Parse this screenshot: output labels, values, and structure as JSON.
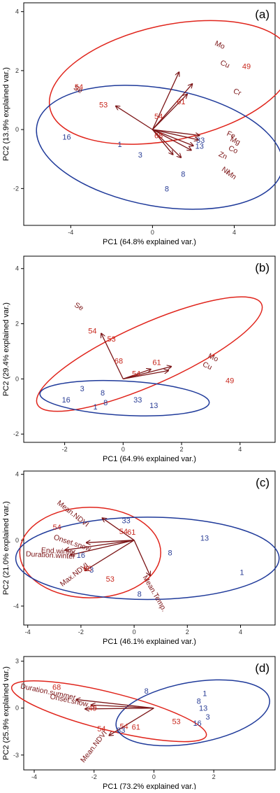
{
  "colors": {
    "group_red": "#e0241b",
    "group_blue": "#1f3a9a",
    "arrow": "#7b1416",
    "label_red": "#c8281e",
    "label_blue": "#2a3e96",
    "frame": "#000000"
  },
  "chart_data": [
    {
      "type": "scatter",
      "panel_label": "(a)",
      "xlabel": "PC1 (64.8% explained var.)",
      "ylabel": "PC2 (13.9% explained var.)",
      "xlim": [
        -6.3,
        6.0
      ],
      "ylim": [
        -3.25,
        4.3
      ],
      "xticks": [
        -4,
        0,
        4
      ],
      "yticks": [
        -2,
        0,
        2,
        4
      ],
      "ellipses": [
        {
          "group": "red",
          "cx": 0.9,
          "cy": 1.6,
          "rx": 6.05,
          "ry": 1.95,
          "angle": 12
        },
        {
          "group": "blue",
          "cx": 0.35,
          "cy": -0.6,
          "rx": 6.1,
          "ry": 2.0,
          "angle": -10
        }
      ],
      "points": [
        {
          "label": "54",
          "x": -3.6,
          "y": 1.45,
          "group": "red"
        },
        {
          "label": "53",
          "x": -2.4,
          "y": 0.85,
          "group": "red"
        },
        {
          "label": "54",
          "x": 0.3,
          "y": 0.45,
          "group": "red"
        },
        {
          "label": "61",
          "x": 1.4,
          "y": 0.95,
          "group": "red"
        },
        {
          "label": "68",
          "x": 0.3,
          "y": -0.2,
          "group": "red"
        },
        {
          "label": "49",
          "x": 4.6,
          "y": 2.15,
          "group": "red"
        },
        {
          "label": "16",
          "x": -4.2,
          "y": -0.25,
          "group": "blue"
        },
        {
          "label": "1",
          "x": -1.6,
          "y": -0.5,
          "group": "blue"
        },
        {
          "label": "3",
          "x": -0.6,
          "y": -0.85,
          "group": "blue"
        },
        {
          "label": "33",
          "x": 2.35,
          "y": -0.35,
          "group": "blue"
        },
        {
          "label": "13",
          "x": 2.3,
          "y": -0.55,
          "group": "blue"
        },
        {
          "label": "8",
          "x": 1.5,
          "y": -1.5,
          "group": "blue"
        },
        {
          "label": "8",
          "x": 0.7,
          "y": -2.0,
          "group": "blue"
        }
      ],
      "loadings": [
        {
          "label": "Se",
          "x": -1.8,
          "y": 0.8,
          "lx": -3.7,
          "ly": 1.3,
          "rotate": 30
        },
        {
          "label": "Mo",
          "x": 1.3,
          "y": 1.95,
          "lx": 3.25,
          "ly": 2.8,
          "rotate": 25
        },
        {
          "label": "Cu",
          "x": 1.95,
          "y": 1.55,
          "lx": 3.5,
          "ly": 2.15,
          "rotate": 25
        },
        {
          "label": "Cr",
          "x": 1.7,
          "y": 1.2,
          "lx": 4.1,
          "ly": 1.2,
          "rotate": 25
        },
        {
          "label": "Fe",
          "x": 2.3,
          "y": -0.2,
          "lx": 3.8,
          "ly": -0.25,
          "rotate": 25
        },
        {
          "label": "Mg",
          "x": 2.25,
          "y": -0.35,
          "lx": 4.0,
          "ly": -0.45,
          "rotate": 25
        },
        {
          "label": "Co",
          "x": 2.0,
          "y": -0.55,
          "lx": 3.9,
          "ly": -0.75,
          "rotate": 25
        },
        {
          "label": "Zn",
          "x": 1.9,
          "y": -0.7,
          "lx": 3.4,
          "ly": -0.95,
          "rotate": 25
        },
        {
          "label": "Ni",
          "x": 1.4,
          "y": -0.95,
          "lx": 3.5,
          "ly": -1.45,
          "rotate": 35
        },
        {
          "label": "Mn",
          "x": 1.0,
          "y": -0.85,
          "lx": 3.8,
          "ly": -1.6,
          "rotate": 35
        }
      ]
    },
    {
      "type": "scatter",
      "panel_label": "(b)",
      "xlabel": "PC1 (64.9% explained var.)",
      "ylabel": "PC2 (29.4% explained var.)",
      "xlim": [
        -3.4,
        5.2
      ],
      "ylim": [
        -2.3,
        4.45
      ],
      "xticks": [
        -2,
        0,
        2,
        4
      ],
      "yticks": [
        -2,
        0,
        2,
        4
      ],
      "ellipses": [
        {
          "group": "red",
          "cx": 0.9,
          "cy": 0.9,
          "rx": 4.2,
          "ry": 1.1,
          "angle": 24
        },
        {
          "group": "blue",
          "cx": 0.05,
          "cy": -0.7,
          "rx": 2.9,
          "ry": 0.62,
          "angle": -3
        }
      ],
      "points": [
        {
          "label": "54",
          "x": -1.05,
          "y": 1.75,
          "group": "red"
        },
        {
          "label": "53",
          "x": -0.4,
          "y": 1.45,
          "group": "red"
        },
        {
          "label": "68",
          "x": -0.15,
          "y": 0.65,
          "group": "red"
        },
        {
          "label": "54",
          "x": 0.45,
          "y": 0.2,
          "group": "red"
        },
        {
          "label": "61",
          "x": 1.15,
          "y": 0.6,
          "group": "red"
        },
        {
          "label": "49",
          "x": 3.65,
          "y": -0.05,
          "group": "red"
        },
        {
          "label": "3",
          "x": -1.4,
          "y": -0.35,
          "group": "blue"
        },
        {
          "label": "8",
          "x": -0.7,
          "y": -0.5,
          "group": "blue"
        },
        {
          "label": "16",
          "x": -1.95,
          "y": -0.75,
          "group": "blue"
        },
        {
          "label": "8",
          "x": -0.6,
          "y": -0.85,
          "group": "blue"
        },
        {
          "label": "1",
          "x": -0.95,
          "y": -1.0,
          "group": "blue"
        },
        {
          "label": "33",
          "x": 0.5,
          "y": -0.75,
          "group": "blue"
        },
        {
          "label": "13",
          "x": 1.05,
          "y": -0.95,
          "group": "blue"
        }
      ],
      "loadings": [
        {
          "label": "Se",
          "x": -0.75,
          "y": 1.65,
          "lx": -1.55,
          "ly": 2.55,
          "rotate": 30
        },
        {
          "label": "Mo",
          "x": 1.65,
          "y": 0.45,
          "lx": 3.05,
          "ly": 0.7,
          "rotate": 25
        },
        {
          "label": "Cu",
          "x": 1.55,
          "y": 0.3,
          "lx": 2.85,
          "ly": 0.4,
          "rotate": 25
        },
        {
          "label": "",
          "x": 0.95,
          "y": 0.35,
          "lx": 0,
          "ly": 0,
          "rotate": 0
        }
      ]
    },
    {
      "type": "scatter",
      "panel_label": "(c)",
      "xlabel": "PC1 (46.1% explained var.)",
      "ylabel": "PC2 (21.0% explained var.)",
      "xlim": [
        -4.15,
        5.3
      ],
      "ylim": [
        -5.15,
        4.2
      ],
      "xticks": [
        -4,
        -2,
        0,
        2,
        4
      ],
      "yticks": [
        -4,
        0,
        4
      ],
      "ellipses": [
        {
          "group": "red",
          "cx": -1.65,
          "cy": -0.75,
          "rx": 2.65,
          "ry": 2.75,
          "angle": 0
        },
        {
          "group": "blue",
          "cx": 0.5,
          "cy": -1.1,
          "rx": 4.95,
          "ry": 2.5,
          "angle": 0
        }
      ],
      "points": [
        {
          "label": "54",
          "x": -2.9,
          "y": 0.8,
          "group": "red"
        },
        {
          "label": "54",
          "x": -0.4,
          "y": 0.55,
          "group": "red"
        },
        {
          "label": "61",
          "x": -0.1,
          "y": 0.5,
          "group": "red"
        },
        {
          "label": "68",
          "x": -1.75,
          "y": -1.7,
          "group": "red"
        },
        {
          "label": "53",
          "x": -0.9,
          "y": -2.35,
          "group": "red"
        },
        {
          "label": "33",
          "x": -0.3,
          "y": 1.2,
          "group": "blue"
        },
        {
          "label": "16",
          "x": -2.0,
          "y": -0.9,
          "group": "blue"
        },
        {
          "label": "3",
          "x": -1.6,
          "y": -1.8,
          "group": "blue"
        },
        {
          "label": "8",
          "x": 1.35,
          "y": -0.75,
          "group": "blue"
        },
        {
          "label": "8",
          "x": 0.2,
          "y": -3.25,
          "group": "blue"
        },
        {
          "label": "13",
          "x": 2.65,
          "y": 0.15,
          "group": "blue"
        },
        {
          "label": "1",
          "x": 4.05,
          "y": -1.95,
          "group": "blue"
        }
      ],
      "loadings": [
        {
          "label": "Mean.NDVI",
          "x": -1.2,
          "y": 1.35,
          "lx": -2.35,
          "ly": 1.5,
          "rotate": 38
        },
        {
          "label": "Onset.snow",
          "x": -1.8,
          "y": -0.15,
          "lx": -2.35,
          "ly": -0.3,
          "rotate": 18
        },
        {
          "label": "Duration.winter",
          "x": -2.4,
          "y": -0.9,
          "lx": -3.15,
          "ly": -1.05,
          "rotate": 3
        },
        {
          "label": "End.winter",
          "x": -2.6,
          "y": -0.6,
          "lx": -2.85,
          "ly": -0.8,
          "rotate": 3
        },
        {
          "label": "Max.NDVI",
          "x": -1.85,
          "y": -1.85,
          "lx": -2.2,
          "ly": -2.2,
          "rotate": -38
        },
        {
          "label": "Mean.Temp.",
          "x": 0.6,
          "y": -2.15,
          "lx": 0.7,
          "ly": -3.3,
          "rotate": 60
        }
      ]
    },
    {
      "type": "scatter",
      "panel_label": "(d)",
      "xlabel": "PC1 (73.2% explained var.)",
      "ylabel": "PC2 (25.9% explained var.)",
      "xlim": [
        -4.35,
        4.05
      ],
      "ylim": [
        -3.95,
        3.3
      ],
      "xticks": [
        -4,
        -2,
        0,
        2
      ],
      "yticks": [
        -3,
        0,
        3
      ],
      "ellipses": [
        {
          "group": "red",
          "cx": -1.5,
          "cy": -0.2,
          "rx": 3.35,
          "ry": 1.2,
          "angle": -14
        },
        {
          "group": "blue",
          "cx": 1.3,
          "cy": -0.3,
          "rx": 2.6,
          "ry": 1.95,
          "angle": 10
        }
      ],
      "points": [
        {
          "label": "68",
          "x": -3.25,
          "y": 1.35,
          "group": "red"
        },
        {
          "label": "49",
          "x": -2.05,
          "y": 0.0,
          "group": "red"
        },
        {
          "label": "54",
          "x": -1.75,
          "y": -1.3,
          "group": "red"
        },
        {
          "label": "54",
          "x": -1.0,
          "y": -1.15,
          "group": "red"
        },
        {
          "label": "61",
          "x": -0.6,
          "y": -1.2,
          "group": "red"
        },
        {
          "label": "53",
          "x": 0.75,
          "y": -0.85,
          "group": "red"
        },
        {
          "label": "8",
          "x": -0.25,
          "y": 1.1,
          "group": "blue"
        },
        {
          "label": "33",
          "x": -1.1,
          "y": -1.4,
          "group": "blue"
        },
        {
          "label": "1",
          "x": 1.7,
          "y": 0.95,
          "group": "blue"
        },
        {
          "label": "8",
          "x": 1.5,
          "y": 0.45,
          "group": "blue"
        },
        {
          "label": "13",
          "x": 1.65,
          "y": 0.0,
          "group": "blue"
        },
        {
          "label": "3",
          "x": 1.8,
          "y": -0.55,
          "group": "blue"
        },
        {
          "label": "16",
          "x": 1.45,
          "y": -0.95,
          "group": "blue"
        }
      ],
      "loadings": [
        {
          "label": "Duration.summer",
          "x": -2.6,
          "y": 0.55,
          "lx": -3.55,
          "ly": 0.9,
          "rotate": 12
        },
        {
          "label": "Onset.snow",
          "x": -2.1,
          "y": 0.2,
          "lx": -2.85,
          "ly": 0.35,
          "rotate": 12
        },
        {
          "label": "",
          "x": -2.3,
          "y": -0.05,
          "lx": 0,
          "ly": 0,
          "rotate": 0
        },
        {
          "label": "Mean.NDVI",
          "x": -1.5,
          "y": -1.75,
          "lx": -1.95,
          "ly": -2.55,
          "rotate": -52
        }
      ]
    }
  ]
}
